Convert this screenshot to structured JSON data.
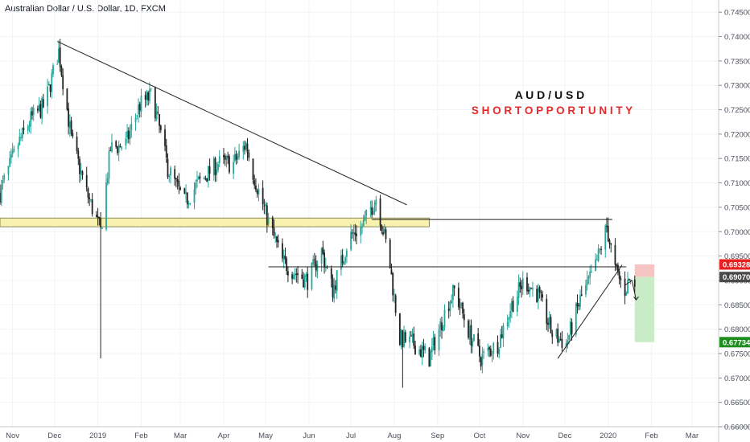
{
  "header": {
    "symbol_title": "Australian Dollar / U.S. Dollar, 1D, FXCM"
  },
  "annotations": {
    "pair": "A U D / U S D",
    "setup": "S H O R T   O P P O R T U N I T Y"
  },
  "price_tags": {
    "stop": {
      "text": "0.69328",
      "value": 0.69328,
      "color": "#e91e1e"
    },
    "last": {
      "text": "0.69070",
      "value": 0.6907,
      "color": "#4a4a4a"
    },
    "target": {
      "text": "0.67734",
      "value": 0.67734,
      "color": "#1e8e1e"
    }
  },
  "colors": {
    "up": "#26a69a",
    "down": "#222222",
    "support_zone": "#f9f1b0",
    "support_zone_border": "#6b6b3a",
    "stop_box": "#f7c4c4",
    "target_box": "#c9ecc6",
    "title_red": "#e52b2b"
  },
  "chart_data": {
    "type": "candlestick",
    "title": "Australian Dollar / U.S. Dollar, 1D, FXCM",
    "y_axis": {
      "ticks": [
        "0.74500",
        "0.74000",
        "0.73500",
        "0.73000",
        "0.72500",
        "0.72000",
        "0.71500",
        "0.71000",
        "0.70500",
        "0.70000",
        "0.69500",
        "0.69000",
        "0.68500",
        "0.68000",
        "0.67500",
        "0.67000",
        "0.66500",
        "0.66000"
      ],
      "range": [
        0.66,
        0.7475
      ]
    },
    "x_axis": {
      "ticks": [
        "Nov",
        "Dec",
        "2019",
        "Feb",
        "Mar",
        "Apr",
        "May",
        "Jun",
        "Jul",
        "Aug",
        "Sep",
        "Oct",
        "Nov",
        "Dec",
        "2020",
        "Feb",
        "Mar"
      ],
      "tick_dates": [
        "2018-11-01",
        "2018-12-01",
        "2019-01-01",
        "2019-02-01",
        "2019-03-01",
        "2019-04-01",
        "2019-05-01",
        "2019-06-01",
        "2019-07-01",
        "2019-08-01",
        "2019-09-01",
        "2019-10-01",
        "2019-11-01",
        "2019-12-01",
        "2020-01-01",
        "2020-02-01",
        "2020-03-01"
      ],
      "range": [
        "2018-10-23",
        "2020-03-20"
      ]
    },
    "price_path": [
      [
        "2018-10-23",
        0.708
      ],
      [
        "2018-11-05",
        0.718
      ],
      [
        "2018-11-14",
        0.723
      ],
      [
        "2018-11-24",
        0.726
      ],
      [
        "2018-12-04",
        0.737
      ],
      [
        "2018-12-13",
        0.719
      ],
      [
        "2018-12-24",
        0.708
      ],
      [
        "2019-01-03",
        0.7
      ],
      [
        "2019-01-10",
        0.717
      ],
      [
        "2019-01-21",
        0.718
      ],
      [
        "2019-01-31",
        0.726
      ],
      [
        "2019-02-09",
        0.728
      ],
      [
        "2019-02-20",
        0.713
      ],
      [
        "2019-03-04",
        0.706
      ],
      [
        "2019-03-14",
        0.71
      ],
      [
        "2019-03-28",
        0.714
      ],
      [
        "2019-04-08",
        0.714
      ],
      [
        "2019-04-17",
        0.718
      ],
      [
        "2019-04-22",
        0.712
      ],
      [
        "2019-05-03",
        0.702
      ],
      [
        "2019-05-13",
        0.694
      ],
      [
        "2019-05-20",
        0.692
      ],
      [
        "2019-05-31",
        0.69
      ],
      [
        "2019-06-10",
        0.696
      ],
      [
        "2019-06-18",
        0.688
      ],
      [
        "2019-06-30",
        0.699
      ],
      [
        "2019-07-09",
        0.701
      ],
      [
        "2019-07-19",
        0.707
      ],
      [
        "2019-07-28",
        0.695
      ],
      [
        "2019-08-05",
        0.678
      ],
      [
        "2019-08-15",
        0.677
      ],
      [
        "2019-08-26",
        0.674
      ],
      [
        "2019-09-08",
        0.685
      ],
      [
        "2019-09-13",
        0.688
      ],
      [
        "2019-09-24",
        0.679
      ],
      [
        "2019-10-02",
        0.674
      ],
      [
        "2019-10-14",
        0.677
      ],
      [
        "2019-10-24",
        0.685
      ],
      [
        "2019-11-02",
        0.69
      ],
      [
        "2019-11-12",
        0.687
      ],
      [
        "2019-11-22",
        0.679
      ],
      [
        "2019-12-02",
        0.677
      ],
      [
        "2019-12-12",
        0.686
      ],
      [
        "2019-12-22",
        0.692
      ],
      [
        "2019-12-31",
        0.701
      ],
      [
        "2020-01-06",
        0.692
      ],
      [
        "2020-01-13",
        0.688
      ],
      [
        "2020-01-16",
        0.69
      ],
      [
        "2020-01-20",
        0.6895
      ]
    ],
    "spikes": [
      {
        "date": "2019-01-03",
        "low": 0.674,
        "high": 0.704
      },
      {
        "date": "2019-08-07",
        "low": 0.668,
        "high": 0.679
      }
    ],
    "drawings": {
      "descending_trendline": {
        "from": [
          "2018-12-03",
          0.739
        ],
        "to": [
          "2019-08-10",
          0.7055
        ]
      },
      "support_zone": {
        "from": "2018-10-23",
        "to": "2019-08-26",
        "low": 0.701,
        "high": 0.7028
      },
      "resistance_line_upper": {
        "from": "2019-07-16",
        "to": "2020-01-04",
        "value": 0.7025
      },
      "horizontal_line_lower": {
        "from": "2019-05-03",
        "to": "2020-01-14",
        "value": 0.6928
      },
      "rising_trendline": {
        "from": [
          "2019-11-26",
          0.674
        ],
        "to": [
          "2020-01-11",
          0.6932
        ]
      },
      "projection_arrow": [
        [
          "2020-01-13",
          0.689
        ],
        [
          "2020-01-18",
          0.69
        ],
        [
          "2020-01-21",
          0.686
        ]
      ],
      "stop_box": {
        "from": "2020-01-20",
        "to": "2020-02-03",
        "low": 0.6907,
        "high": 0.69328
      },
      "target_box": {
        "from": "2020-01-20",
        "to": "2020-02-03",
        "low": 0.67734,
        "high": 0.6907
      }
    }
  }
}
